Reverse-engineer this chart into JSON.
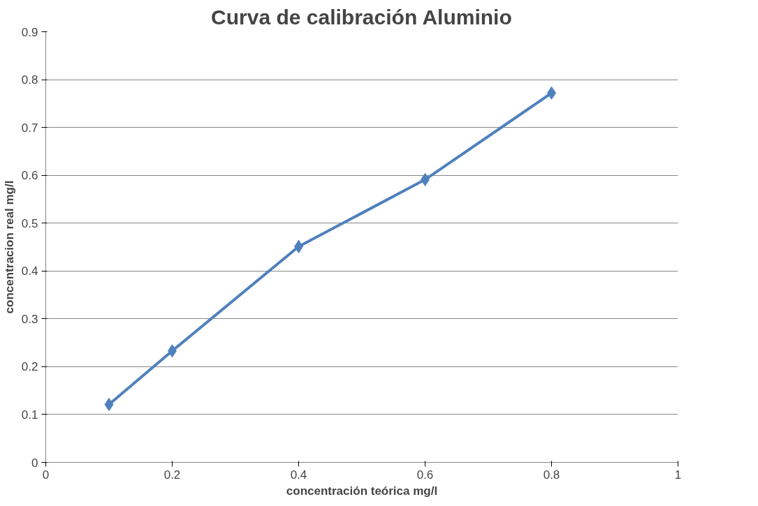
{
  "chart_data": {
    "type": "line",
    "title": "Curva de calibración Aluminio",
    "xlabel": "concentración teórica mg/l",
    "ylabel": "concentracion real mg/l",
    "x": [
      0.1,
      0.2,
      0.4,
      0.6,
      0.8
    ],
    "series": [
      {
        "color": "#4f81bd",
        "values": [
          0.121,
          0.233,
          0.451,
          0.591,
          0.772
        ]
      }
    ],
    "xlim": [
      0,
      1
    ],
    "xticks": [
      0,
      0.2,
      0.4,
      0.6,
      0.8,
      1
    ],
    "ylim": [
      0,
      0.9
    ],
    "yticks": [
      0,
      0.1,
      0.2,
      0.3,
      0.4,
      0.5,
      0.6,
      0.7,
      0.8,
      0.9
    ],
    "grid": "y",
    "marker": "diamond",
    "line_style": "solid"
  }
}
